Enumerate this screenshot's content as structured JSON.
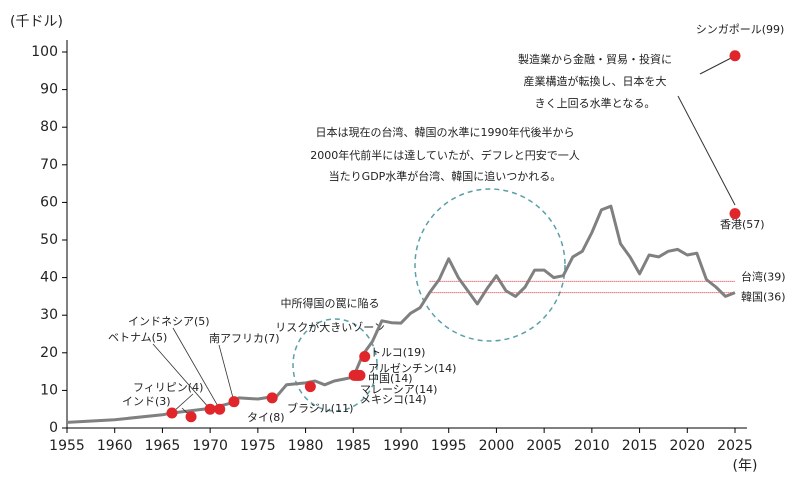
{
  "chart_data": {
    "type": "line",
    "y_label": "(千ドル)",
    "x_label": "(年)",
    "xlim": [
      1955,
      2025
    ],
    "xticks": [
      1955,
      1960,
      1965,
      1970,
      1975,
      1980,
      1985,
      1990,
      1995,
      2000,
      2005,
      2010,
      2015,
      2020,
      2025
    ],
    "ylim": [
      0,
      100
    ],
    "yticks": [
      0,
      10,
      20,
      30,
      40,
      50,
      60,
      70,
      80,
      90,
      100
    ],
    "color": "#808080",
    "x": [
      1955,
      1960,
      1965,
      1966,
      1970,
      1972,
      1973,
      1975,
      1977,
      1978,
      1980,
      1981,
      1982,
      1983,
      1984,
      1985,
      1986,
      1987,
      1988,
      1989,
      1990,
      1991,
      1992,
      1993,
      1994,
      1995,
      1996,
      1997,
      1998,
      1999,
      2000,
      2001,
      2002,
      2003,
      2004,
      2005,
      2006,
      2007,
      2008,
      2009,
      2010,
      2011,
      2012,
      2013,
      2014,
      2015,
      2016,
      2017,
      2018,
      2019,
      2020,
      2021,
      2022,
      2023,
      2024,
      2025
    ],
    "values": [
      1.5,
      2.2,
      3.5,
      4,
      5.2,
      6.5,
      8,
      7.7,
      8.5,
      11.5,
      12,
      12.5,
      11.5,
      12.5,
      13,
      13.5,
      19.5,
      23,
      28.5,
      28,
      27.9,
      30.5,
      32,
      36,
      39.5,
      45,
      40,
      36.5,
      33,
      37,
      40.5,
      36.5,
      35,
      37.5,
      42,
      42,
      40,
      40.5,
      45.5,
      47,
      52,
      58,
      59,
      49,
      45.5,
      41,
      46,
      45.5,
      47,
      47.5,
      46,
      46.5,
      39.5,
      37.5,
      35,
      36
    ],
    "point_color": "#e0262b",
    "points": [
      {
        "label": "フィリピン(4)",
        "x": 1966,
        "value": 4
      },
      {
        "label": "インド(3)",
        "x": 1968,
        "value": 3
      },
      {
        "label": "ベトナム(5)",
        "x": 1970,
        "value": 5
      },
      {
        "label": "インドネシア(5)",
        "x": 1971,
        "value": 5
      },
      {
        "label": "南アフリカ(7)",
        "x": 1972.5,
        "value": 7
      },
      {
        "label": "タイ(8)",
        "x": 1976.5,
        "value": 8
      },
      {
        "label": "ブラジル(11)",
        "x": 1980.5,
        "value": 11
      },
      {
        "label": "メキシコ(14)",
        "x": 1985.1,
        "value": 14
      },
      {
        "label": "マレーシア(14)",
        "x": 1985.3,
        "value": 14
      },
      {
        "label": "中国(14)",
        "x": 1985.5,
        "value": 14
      },
      {
        "label": "アルゼンチン(14)",
        "x": 1985.7,
        "value": 14
      },
      {
        "label": "トルコ(19)",
        "x": 1986.2,
        "value": 19
      },
      {
        "label": "香港(57)",
        "x": 2025,
        "value": 57
      },
      {
        "label": "シンガポール(99)",
        "x": 2025,
        "value": 99
      }
    ],
    "ref_lines": [
      {
        "label": "台湾(39)",
        "x": [
          1993,
          2025
        ],
        "value": 39
      },
      {
        "label": "韓国(36)",
        "x": [
          1993,
          2025
        ],
        "value": 36
      }
    ],
    "annotations": [
      {
        "lines": [
          "中所得国の罠に陥る",
          "リスクが大きいゾーン"
        ]
      },
      {
        "lines": [
          "日本は現在の台湾、韓国の水準に1990年代後半から",
          "2000年代前半には達していたが、デフレと円安で一人",
          "当たりGDP水準が台湾、韓国に追いつかれる。"
        ]
      },
      {
        "lines": [
          "製造業から金融・貿易・投資に",
          "産業構造が転換し、日本を大",
          "きく上回る水準となる。"
        ]
      }
    ]
  }
}
